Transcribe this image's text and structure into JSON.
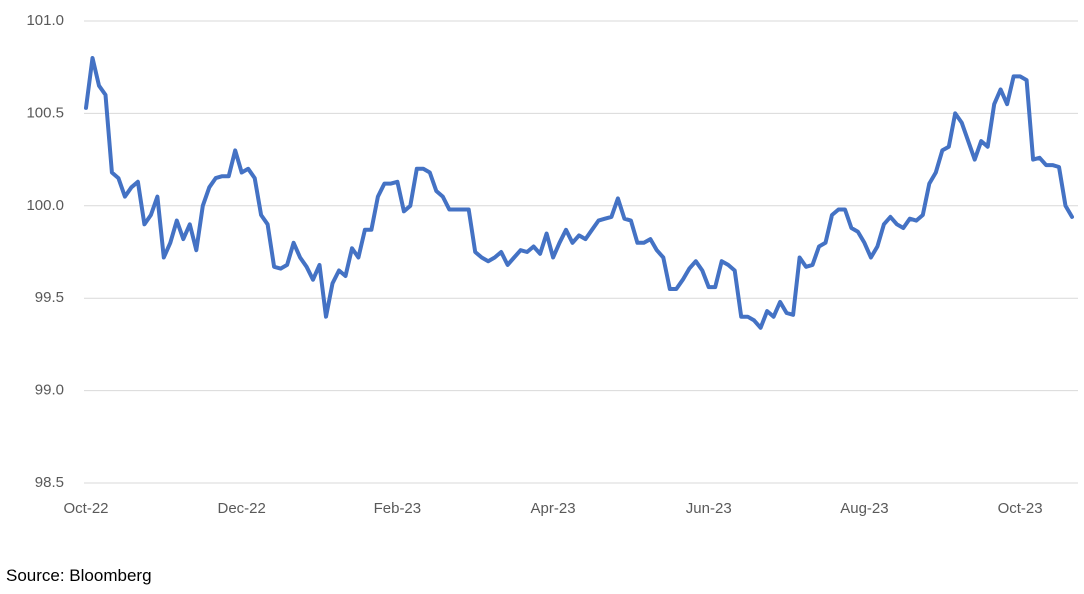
{
  "chart_data": {
    "type": "line",
    "categories": [
      "Oct-22",
      null,
      null,
      null,
      null,
      null,
      null,
      null,
      null,
      null,
      null,
      null,
      null,
      null,
      null,
      null,
      null,
      null,
      null,
      null,
      null,
      null,
      null,
      null,
      "Dec-22",
      null,
      null,
      null,
      null,
      null,
      null,
      null,
      null,
      null,
      null,
      null,
      null,
      null,
      null,
      null,
      null,
      null,
      null,
      null,
      null,
      null,
      null,
      null,
      "Feb-23",
      null,
      null,
      null,
      null,
      null,
      null,
      null,
      null,
      null,
      null,
      null,
      null,
      null,
      null,
      null,
      null,
      null,
      null,
      null,
      null,
      null,
      null,
      null,
      "Apr-23",
      null,
      null,
      null,
      null,
      null,
      null,
      null,
      null,
      null,
      null,
      null,
      null,
      null,
      null,
      null,
      null,
      null,
      null,
      null,
      null,
      null,
      null,
      null,
      "Jun-23",
      null,
      null,
      null,
      null,
      null,
      null,
      null,
      null,
      null,
      null,
      null,
      null,
      null,
      null,
      null,
      null,
      null,
      null,
      null,
      null,
      null,
      null,
      null,
      "Aug-23",
      null,
      null,
      null,
      null,
      null,
      null,
      null,
      null,
      null,
      null,
      null,
      null,
      null,
      null,
      null,
      null,
      null,
      null,
      null,
      null,
      null,
      null,
      null,
      "Oct-23",
      null,
      null,
      null,
      null,
      null,
      null,
      null,
      null
    ],
    "series": [
      {
        "color": "#4472c4",
        "values": [
          100.53,
          100.8,
          100.65,
          100.6,
          100.18,
          100.15,
          100.05,
          100.1,
          100.13,
          99.9,
          99.95,
          100.05,
          99.72,
          99.8,
          99.92,
          99.82,
          99.9,
          99.76,
          100.0,
          100.1,
          100.15,
          100.16,
          100.16,
          100.3,
          100.18,
          100.2,
          100.15,
          99.95,
          99.9,
          99.67,
          99.66,
          99.68,
          99.8,
          99.72,
          99.67,
          99.6,
          99.68,
          99.4,
          99.58,
          99.65,
          99.62,
          99.77,
          99.72,
          99.87,
          99.87,
          100.05,
          100.12,
          100.12,
          100.13,
          99.97,
          100.0,
          100.2,
          100.2,
          100.18,
          100.08,
          100.05,
          99.98,
          99.98,
          99.98,
          99.98,
          99.75,
          99.72,
          99.7,
          99.72,
          99.75,
          99.68,
          99.72,
          99.76,
          99.75,
          99.78,
          99.74,
          99.85,
          99.72,
          99.8,
          99.87,
          99.8,
          99.84,
          99.82,
          99.87,
          99.92,
          99.93,
          99.94,
          100.04,
          99.93,
          99.92,
          99.8,
          99.8,
          99.82,
          99.76,
          99.72,
          99.55,
          99.55,
          99.6,
          99.66,
          99.7,
          99.65,
          99.56,
          99.56,
          99.7,
          99.68,
          99.65,
          99.4,
          99.4,
          99.38,
          99.34,
          99.43,
          99.4,
          99.48,
          99.42,
          99.41,
          99.72,
          99.67,
          99.68,
          99.78,
          99.8,
          99.95,
          99.98,
          99.98,
          99.88,
          99.86,
          99.8,
          99.72,
          99.78,
          99.9,
          99.94,
          99.9,
          99.88,
          99.93,
          99.92,
          99.95,
          100.12,
          100.18,
          100.3,
          100.32,
          100.5,
          100.45,
          100.35,
          100.25,
          100.35,
          100.32,
          100.55,
          100.63,
          100.55,
          100.7,
          100.7,
          100.68,
          100.25,
          100.26,
          100.22,
          100.22,
          100.21,
          100.0,
          99.94
        ]
      }
    ],
    "ylim": [
      98.5,
      101.0
    ],
    "yticks": [
      98.5,
      {
        "value": 99.0,
        "label": "99.0"
      },
      99.5,
      {
        "value": 100.0,
        "label": "100.0"
      },
      100.5,
      {
        "value": 101.0,
        "label": "101.0"
      }
    ],
    "grid": true,
    "source": "Source: Bloomberg"
  }
}
